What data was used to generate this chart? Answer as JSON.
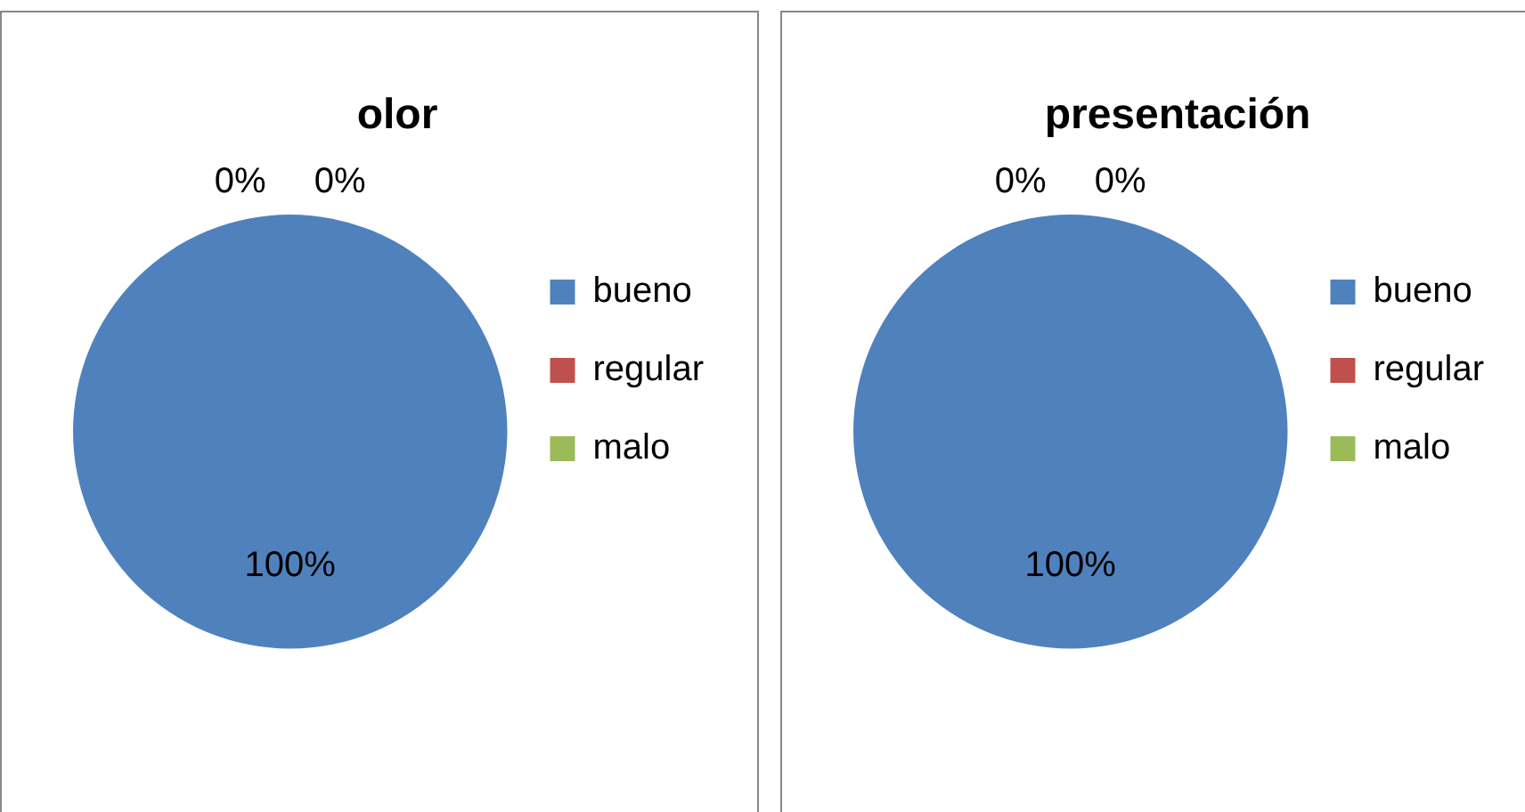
{
  "chart_data": [
    {
      "type": "pie",
      "title": "olor",
      "categories": [
        "bueno",
        "regular",
        "malo"
      ],
      "values": [
        100,
        0,
        0
      ],
      "value_labels": [
        "100%",
        "0%",
        "0%"
      ],
      "colors": [
        "#4f81bd",
        "#c0504d",
        "#9bbb59"
      ],
      "legend": "right"
    },
    {
      "type": "pie",
      "title": "presentación",
      "categories": [
        "bueno",
        "regular",
        "malo"
      ],
      "values": [
        100,
        0,
        0
      ],
      "value_labels": [
        "100%",
        "0%",
        "0%"
      ],
      "colors": [
        "#4f81bd",
        "#c0504d",
        "#9bbb59"
      ],
      "legend": "right"
    }
  ]
}
